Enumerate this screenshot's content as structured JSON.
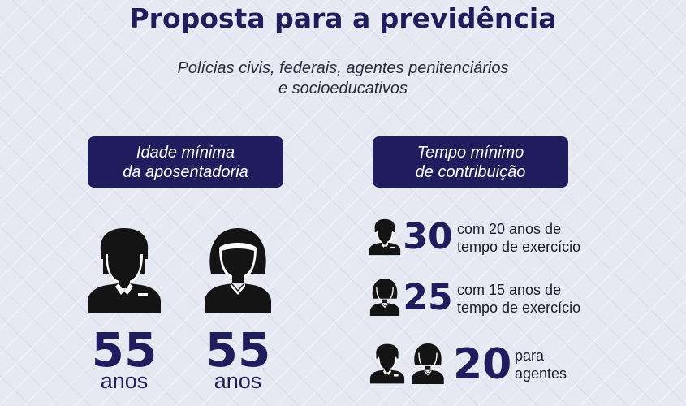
{
  "title": "Proposta para a previdência",
  "subtitle": {
    "line1": "Polícias civis, federais, agentes penitenciários",
    "line2": "e socioeducativos"
  },
  "colors": {
    "navy": "#1f1d5e",
    "background": "#e6e9f2",
    "icon": "#141414"
  },
  "left_panel": {
    "header_line1": "Idade mínima",
    "header_line2": "da aposentadoria",
    "man": {
      "icon": "man-silhouette-icon",
      "value": "55",
      "unit": "anos"
    },
    "woman": {
      "icon": "woman-silhouette-icon",
      "value": "55",
      "unit": "anos"
    }
  },
  "right_panel": {
    "header_line1": "Tempo mínimo",
    "header_line2": "de contribuição",
    "rows": [
      {
        "icon": "man-icon",
        "value": "30",
        "note_line1": "com 20 anos de",
        "note_line2": "tempo de exercício"
      },
      {
        "icon": "woman-icon",
        "value": "25",
        "note_line1": "com 15 anos de",
        "note_line2": "tempo de exercício"
      },
      {
        "icon": "man-and-woman-icon",
        "value": "20",
        "note_line1": "para",
        "note_line2": "agentes"
      }
    ]
  }
}
